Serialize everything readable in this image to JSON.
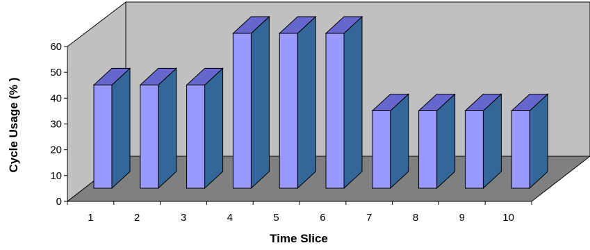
{
  "chart_data": {
    "type": "bar",
    "style": "3d-column",
    "title": "",
    "xlabel": "Time Slice",
    "ylabel": "Cycle Usage (% )",
    "categories": [
      "1",
      "2",
      "3",
      "4",
      "5",
      "6",
      "7",
      "8",
      "9",
      "10"
    ],
    "values": [
      40,
      40,
      40,
      60,
      60,
      60,
      30,
      30,
      30,
      30
    ],
    "ylim": [
      0,
      60
    ],
    "yticks": [
      "0",
      "10",
      "20",
      "30",
      "40",
      "50",
      "60"
    ],
    "grid": false,
    "legend": "none",
    "colors": {
      "bar_front": "#9999ff",
      "bar_side": "#336699",
      "bar_top": "#6666cc",
      "wall": "#c0c0c0",
      "floor": "#808080",
      "outline": "#000000"
    }
  }
}
